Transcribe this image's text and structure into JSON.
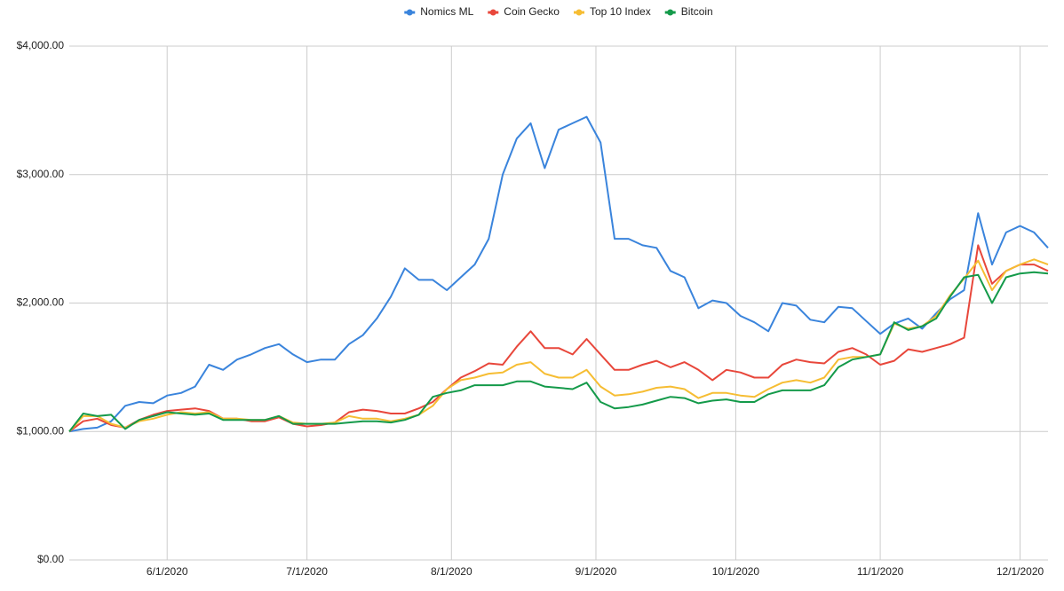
{
  "chart_data": {
    "type": "line",
    "x": [
      "5/11/2020",
      "5/14/2020",
      "5/17/2020",
      "5/20/2020",
      "5/23/2020",
      "5/26/2020",
      "5/29/2020",
      "6/1/2020",
      "6/4/2020",
      "6/7/2020",
      "6/10/2020",
      "6/13/2020",
      "6/16/2020",
      "6/19/2020",
      "6/22/2020",
      "6/25/2020",
      "6/28/2020",
      "7/1/2020",
      "7/4/2020",
      "7/7/2020",
      "7/10/2020",
      "7/13/2020",
      "7/16/2020",
      "7/19/2020",
      "7/22/2020",
      "7/25/2020",
      "7/28/2020",
      "7/31/2020",
      "8/3/2020",
      "8/6/2020",
      "8/9/2020",
      "8/12/2020",
      "8/15/2020",
      "8/18/2020",
      "8/21/2020",
      "8/24/2020",
      "8/27/2020",
      "8/30/2020",
      "9/2/2020",
      "9/5/2020",
      "9/8/2020",
      "9/11/2020",
      "9/14/2020",
      "9/17/2020",
      "9/20/2020",
      "9/23/2020",
      "9/26/2020",
      "9/29/2020",
      "10/2/2020",
      "10/5/2020",
      "10/8/2020",
      "10/11/2020",
      "10/14/2020",
      "10/17/2020",
      "10/20/2020",
      "10/23/2020",
      "10/26/2020",
      "10/29/2020",
      "11/1/2020",
      "11/4/2020",
      "11/7/2020",
      "11/10/2020",
      "11/13/2020",
      "11/16/2020",
      "11/19/2020",
      "11/22/2020",
      "11/25/2020",
      "11/28/2020",
      "12/1/2020",
      "12/4/2020",
      "12/7/2020"
    ],
    "series": [
      {
        "name": "Nomics ML",
        "color": "#3a84dc",
        "values": [
          1000,
          1020,
          1030,
          1080,
          1200,
          1230,
          1220,
          1280,
          1300,
          1350,
          1520,
          1480,
          1560,
          1600,
          1650,
          1680,
          1600,
          1540,
          1560,
          1560,
          1680,
          1750,
          1880,
          2050,
          2270,
          2180,
          2180,
          2100,
          2200,
          2300,
          2500,
          3000,
          3280,
          3400,
          3050,
          3350,
          3400,
          3450,
          3250,
          2500,
          2500,
          2450,
          2430,
          2250,
          2200,
          1960,
          2020,
          2000,
          1900,
          1850,
          1780,
          2000,
          1980,
          1870,
          1850,
          1970,
          1960,
          1860,
          1760,
          1840,
          1880,
          1800,
          1920,
          2030,
          2100,
          2700,
          2300,
          2550,
          2600,
          2550,
          2430
        ]
      },
      {
        "name": "Coin Gecko",
        "color": "#e8473b",
        "values": [
          1000,
          1080,
          1100,
          1050,
          1030,
          1090,
          1130,
          1160,
          1170,
          1180,
          1160,
          1100,
          1100,
          1080,
          1080,
          1110,
          1060,
          1040,
          1050,
          1070,
          1150,
          1170,
          1160,
          1140,
          1140,
          1180,
          1230,
          1330,
          1420,
          1470,
          1530,
          1520,
          1660,
          1780,
          1650,
          1650,
          1600,
          1720,
          1600,
          1480,
          1480,
          1520,
          1550,
          1500,
          1540,
          1480,
          1400,
          1480,
          1460,
          1420,
          1420,
          1520,
          1560,
          1540,
          1530,
          1620,
          1650,
          1600,
          1520,
          1550,
          1640,
          1620,
          1650,
          1680,
          1730,
          2450,
          2150,
          2250,
          2300,
          2300,
          2250
        ]
      },
      {
        "name": "Top 10 Index",
        "color": "#f6bd33",
        "values": [
          1000,
          1120,
          1120,
          1060,
          1030,
          1080,
          1100,
          1130,
          1150,
          1140,
          1150,
          1100,
          1100,
          1090,
          1090,
          1120,
          1070,
          1060,
          1060,
          1070,
          1120,
          1100,
          1100,
          1080,
          1100,
          1130,
          1200,
          1330,
          1400,
          1420,
          1450,
          1460,
          1520,
          1540,
          1450,
          1420,
          1420,
          1480,
          1350,
          1280,
          1290,
          1310,
          1340,
          1350,
          1330,
          1260,
          1300,
          1300,
          1280,
          1270,
          1330,
          1380,
          1400,
          1380,
          1420,
          1560,
          1580,
          1580,
          1600,
          1840,
          1800,
          1820,
          1900,
          2060,
          2190,
          2330,
          2100,
          2250,
          2300,
          2340,
          2300
        ]
      },
      {
        "name": "Bitcoin",
        "color": "#149a4a",
        "values": [
          1000,
          1140,
          1120,
          1130,
          1020,
          1090,
          1120,
          1150,
          1140,
          1130,
          1140,
          1090,
          1090,
          1090,
          1090,
          1120,
          1060,
          1060,
          1060,
          1060,
          1070,
          1080,
          1080,
          1070,
          1090,
          1130,
          1270,
          1300,
          1320,
          1360,
          1360,
          1360,
          1390,
          1390,
          1350,
          1340,
          1330,
          1380,
          1230,
          1180,
          1190,
          1210,
          1240,
          1270,
          1260,
          1220,
          1240,
          1250,
          1230,
          1230,
          1290,
          1320,
          1320,
          1320,
          1360,
          1500,
          1560,
          1580,
          1600,
          1850,
          1790,
          1820,
          1880,
          2050,
          2200,
          2220,
          2000,
          2200,
          2230,
          2240,
          2230
        ]
      }
    ],
    "xlim": [
      "5/11/2020",
      "12/7/2020"
    ],
    "xticks": [
      "6/1/2020",
      "7/1/2020",
      "8/1/2020",
      "9/1/2020",
      "10/1/2020",
      "11/1/2020",
      "12/1/2020"
    ],
    "ylim": [
      0,
      4000
    ],
    "yticks": [
      {
        "value": 0,
        "label": "$0.00"
      },
      {
        "value": 1000,
        "label": "$1,000.00"
      },
      {
        "value": 2000,
        "label": "$2,000.00"
      },
      {
        "value": 3000,
        "label": "$3,000.00"
      },
      {
        "value": 4000,
        "label": "$4,000.00"
      }
    ],
    "grid": true,
    "legend": "top"
  }
}
